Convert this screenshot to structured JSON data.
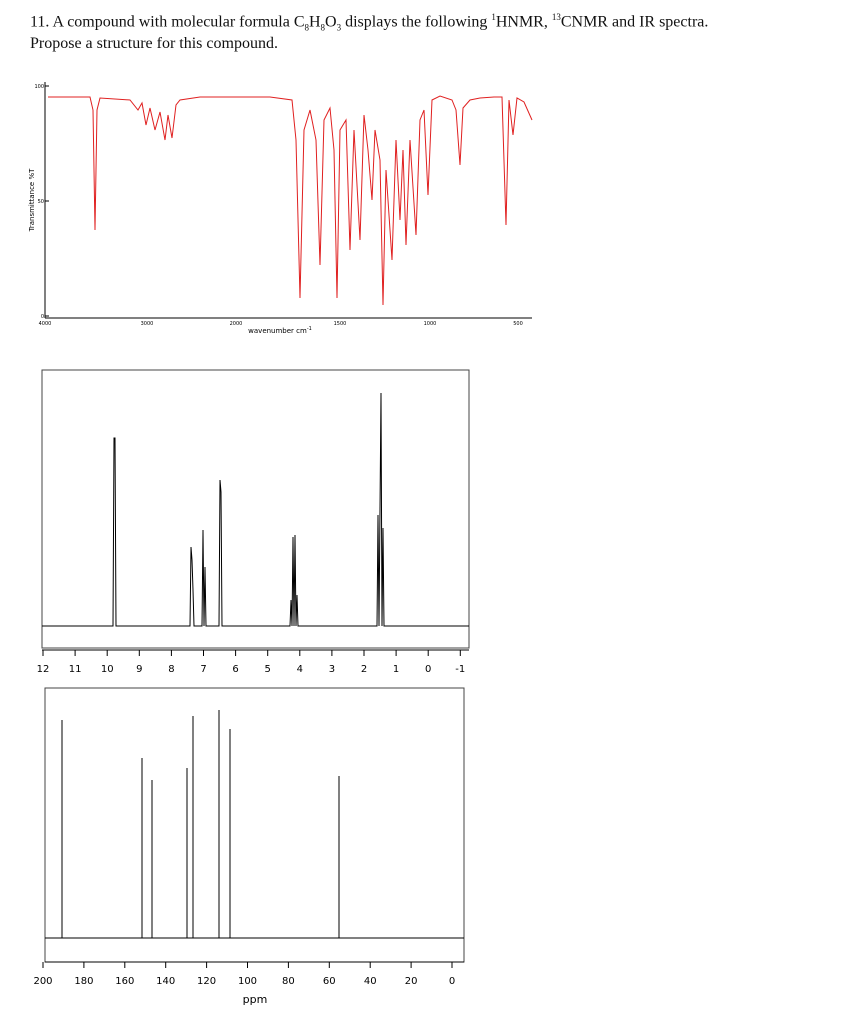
{
  "question": {
    "number": "11.",
    "parts": [
      "A compound with molecular formula C",
      "8",
      "H",
      "8",
      "O",
      "3",
      " displays the following ",
      "1",
      "HNMR, ",
      "13",
      "CNMR and IR spectra."
    ],
    "line2": "Propose a structure for this compound."
  },
  "ir": {
    "y_axis_label": "Transmittance %T",
    "y_ticks": [
      "100",
      "50",
      "0"
    ],
    "x_ticks": [
      "4000",
      "3000",
      "2000",
      "1500",
      "1000",
      "500"
    ],
    "x_axis_label": "wavenumber cm",
    "x_axis_label_sup": "-1"
  },
  "hnmr": {
    "x_ticks": [
      "12",
      "11",
      "10",
      "9",
      "8",
      "7",
      "6",
      "5",
      "4",
      "3",
      "2",
      "1",
      "0",
      "-1"
    ]
  },
  "cnmr": {
    "x_ticks": [
      "200",
      "180",
      "160",
      "140",
      "120",
      "100",
      "80",
      "60",
      "40",
      "20",
      "0"
    ],
    "x_axis_label": "ppm"
  }
}
